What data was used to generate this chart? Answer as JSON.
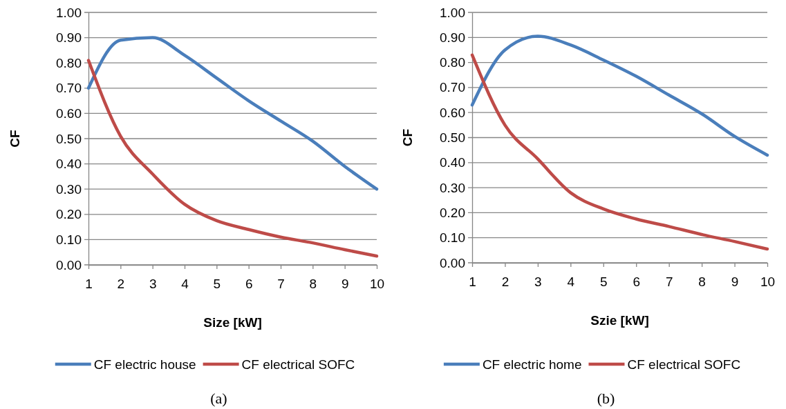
{
  "chart_data": [
    {
      "type": "line",
      "xlabel": "Size [kW]",
      "ylabel": "CF",
      "x": [
        1,
        2,
        3,
        4,
        5,
        6,
        7,
        8,
        9,
        10
      ],
      "xlim": [
        1,
        10
      ],
      "xticks": [
        1,
        2,
        3,
        4,
        5,
        6,
        7,
        8,
        9,
        10
      ],
      "ylim": [
        0,
        1
      ],
      "yticks": [
        {
          "value": 0,
          "label": "0.00"
        },
        {
          "value": 0.1,
          "label": "0.10"
        },
        {
          "value": 0.2,
          "label": "0.20"
        },
        {
          "value": 0.3,
          "label": "0.30"
        },
        {
          "value": 0.4,
          "label": "0.40"
        },
        {
          "value": 0.5,
          "label": "0.50"
        },
        {
          "value": 0.6,
          "label": "0.60"
        },
        {
          "value": 0.7,
          "label": "0.70"
        },
        {
          "value": 0.8,
          "label": "0.80"
        },
        {
          "value": 0.9,
          "label": "0.90"
        },
        {
          "value": 1,
          "label": "1.00"
        }
      ],
      "grid": "y",
      "legend": "bottom",
      "marker": "none",
      "line_style": "solid",
      "annotations": [
        "(a)"
      ],
      "series": [
        {
          "name": "CF electric house",
          "color": "#4a7ebb",
          "values": [
            0.7,
            0.89,
            0.9,
            0.83,
            0.74,
            0.65,
            0.57,
            0.49,
            0.39,
            0.3
          ]
        },
        {
          "name": "CF electrical SOFC",
          "color": "#be4b48",
          "values": [
            0.81,
            0.51,
            0.36,
            0.24,
            0.175,
            0.14,
            0.11,
            0.087,
            0.06,
            0.035
          ]
        }
      ]
    },
    {
      "type": "line",
      "xlabel": "Szie [kW]",
      "ylabel": "CF",
      "x": [
        1,
        2,
        3,
        4,
        5,
        6,
        7,
        8,
        9,
        10
      ],
      "xlim": [
        1,
        10
      ],
      "xticks": [
        1,
        2,
        3,
        4,
        5,
        6,
        7,
        8,
        9,
        10
      ],
      "ylim": [
        0,
        1
      ],
      "yticks": [
        {
          "value": 0,
          "label": "0.00"
        },
        {
          "value": 0.1,
          "label": "0.10"
        },
        {
          "value": 0.2,
          "label": "0.20"
        },
        {
          "value": 0.3,
          "label": "0.30"
        },
        {
          "value": 0.4,
          "label": "0.40"
        },
        {
          "value": 0.5,
          "label": "0.50"
        },
        {
          "value": 0.6,
          "label": "0.60"
        },
        {
          "value": 0.7,
          "label": "0.70"
        },
        {
          "value": 0.8,
          "label": "0.80"
        },
        {
          "value": 0.9,
          "label": "0.90"
        },
        {
          "value": 1,
          "label": "1.00"
        }
      ],
      "grid": "y",
      "legend": "bottom",
      "marker": "none",
      "line_style": "solid",
      "annotations": [
        "(b)"
      ],
      "series": [
        {
          "name": "CF electric home",
          "color": "#4a7ebb",
          "values": [
            0.63,
            0.85,
            0.905,
            0.87,
            0.81,
            0.745,
            0.67,
            0.595,
            0.505,
            0.43
          ]
        },
        {
          "name": "CF electrical SOFC",
          "color": "#be4b48",
          "values": [
            0.83,
            0.55,
            0.415,
            0.28,
            0.215,
            0.175,
            0.145,
            0.113,
            0.085,
            0.055
          ]
        }
      ]
    }
  ]
}
